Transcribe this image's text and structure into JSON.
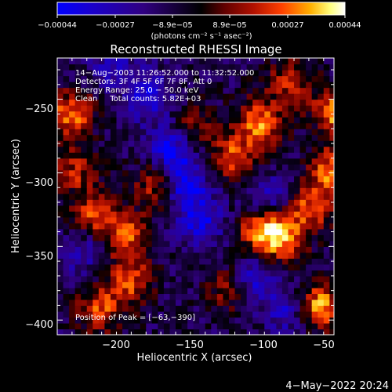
{
  "chart_data": {
    "type": "heatmap",
    "title": "Reconstructed RHESSI Image",
    "xlabel": "Heliocentric X (arcsec)",
    "ylabel": "Heliocentric Y (arcsec)",
    "xlim": [
      -235,
      -48
    ],
    "ylim": [
      -410,
      -222
    ],
    "x_ticks": [
      -200,
      -150,
      -100,
      -50
    ],
    "y_ticks": [
      -250,
      -300,
      -350,
      -400
    ],
    "x_tick_labels": [
      "−200",
      "−150",
      "−100",
      "−50"
    ],
    "y_tick_labels": [
      "−250",
      "−300",
      "−350",
      "−400"
    ],
    "colorbar": {
      "tick_labels": [
        "−0.00044",
        "−0.00027",
        "−8.9e−05",
        "8.9e−05",
        "0.00027",
        "0.00044"
      ],
      "unit_label": "(photons cm⁻² s⁻¹ asec⁻²)",
      "vmin": -0.00044,
      "vmax": 0.00044,
      "colors": [
        "#0000ff",
        "#1a00cc",
        "#300080",
        "#000000",
        "#600000",
        "#b01000",
        "#ff4000",
        "#ffb000",
        "#ffff80",
        "#ffffff"
      ]
    },
    "annotations": {
      "time": "14−Aug−2003 11:26:52.000 to 11:32:52.000",
      "detectors": "Detectors: 3F 4F 5F 6F 7F 8F, Att 0",
      "energy": "Energy Range: 25.0 − 50.0 keV",
      "clean": "Clean     Total counts: 5.82E+03",
      "peak": "Position of Peak = [−63,−390]"
    },
    "bright_regions": [
      {
        "x": -60,
        "y": -392,
        "v": 1.0
      },
      {
        "x": -48,
        "y": -260,
        "v": 0.95
      },
      {
        "x": -50,
        "y": -300,
        "v": 0.9
      },
      {
        "x": -85,
        "y": -345,
        "v": 0.9
      },
      {
        "x": -100,
        "y": -340,
        "v": 0.8
      },
      {
        "x": -100,
        "y": -268,
        "v": 0.85
      },
      {
        "x": -118,
        "y": -292,
        "v": 0.75
      },
      {
        "x": -228,
        "y": -262,
        "v": 0.85
      },
      {
        "x": -212,
        "y": -330,
        "v": 0.7
      },
      {
        "x": -190,
        "y": -345,
        "v": 0.75
      },
      {
        "x": -188,
        "y": -375,
        "v": 0.7
      },
      {
        "x": -208,
        "y": -395,
        "v": 0.7
      },
      {
        "x": -170,
        "y": -310,
        "v": 0.6
      },
      {
        "x": -225,
        "y": -300,
        "v": 0.55
      },
      {
        "x": -120,
        "y": -380,
        "v": 0.55
      },
      {
        "x": -80,
        "y": -240,
        "v": 0.6
      },
      {
        "x": -145,
        "y": -270,
        "v": 0.45
      },
      {
        "x": -65,
        "y": -325,
        "v": 0.75
      }
    ],
    "dim_regions": [
      {
        "x": -150,
        "y": -310,
        "v": -0.8
      },
      {
        "x": -160,
        "y": -285,
        "v": -0.7
      },
      {
        "x": -175,
        "y": -250,
        "v": -0.6
      },
      {
        "x": -140,
        "y": -335,
        "v": -0.6
      },
      {
        "x": -105,
        "y": -375,
        "v": -0.6
      },
      {
        "x": -80,
        "y": -395,
        "v": -0.5
      },
      {
        "x": -220,
        "y": -355,
        "v": -0.4
      },
      {
        "x": -95,
        "y": -320,
        "v": -0.5
      },
      {
        "x": -200,
        "y": -230,
        "v": -0.4
      }
    ],
    "grid": false
  },
  "footer": {
    "date": "4−May−2022 20:24"
  }
}
